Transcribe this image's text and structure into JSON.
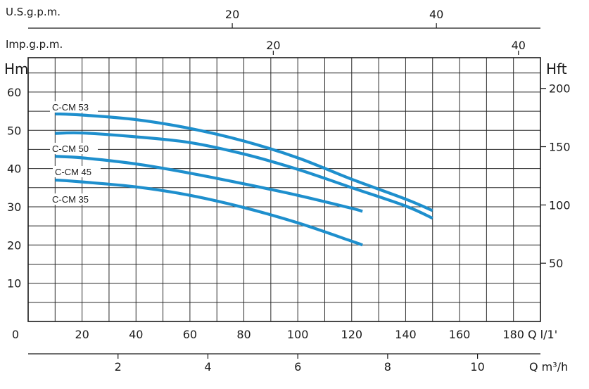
{
  "chart_data": {
    "type": "line",
    "title": "",
    "x": {
      "label": "Q l/1'",
      "ticks": [
        0,
        20,
        40,
        60,
        80,
        100,
        120,
        140,
        160,
        180
      ],
      "range": [
        0,
        190
      ],
      "grid_step": 10
    },
    "y_left": {
      "label": "Hm",
      "ticks": [
        10,
        20,
        30,
        40,
        50,
        60
      ],
      "range": [
        0,
        69
      ],
      "grid_step": 5
    },
    "y_right": {
      "label": "Hft",
      "ticks": [
        50,
        100,
        150,
        200
      ]
    },
    "top_axis_usgpm": {
      "label": "U.S.g.p.m.",
      "ticks": [
        20,
        40
      ]
    },
    "top_axis_impgpm": {
      "label": "Imp.g.p.m.",
      "ticks": [
        20,
        40
      ]
    },
    "bottom_axis_m3h": {
      "label": "Q m³/h",
      "ticks": [
        2,
        4,
        6,
        8,
        10
      ]
    },
    "grid": true,
    "series": [
      {
        "name": "C-CM 53",
        "color": "#1e8fcd",
        "x": [
          10,
          20,
          40,
          60,
          80,
          100,
          120,
          140,
          150
        ],
        "y": [
          54.3,
          54.0,
          52.8,
          50.5,
          47.2,
          42.8,
          37.2,
          32.0,
          29.0
        ]
      },
      {
        "name": "C-CM 50",
        "color": "#1e8fcd",
        "x": [
          10,
          20,
          40,
          60,
          80,
          100,
          120,
          140,
          150
        ],
        "y": [
          49.2,
          49.3,
          48.3,
          46.8,
          43.8,
          39.8,
          35.0,
          30.2,
          27.0
        ]
      },
      {
        "name": "C-CM 45",
        "color": "#1e8fcd",
        "x": [
          10,
          20,
          40,
          60,
          80,
          100,
          120,
          124
        ],
        "y": [
          43.2,
          42.8,
          41.2,
          38.8,
          36.0,
          33.0,
          29.6,
          28.8
        ]
      },
      {
        "name": "C-CM 35",
        "color": "#1e8fcd",
        "x": [
          10,
          20,
          40,
          60,
          80,
          100,
          120,
          124
        ],
        "y": [
          37.0,
          36.5,
          35.2,
          33.0,
          29.8,
          25.8,
          21.0,
          20.0
        ]
      }
    ]
  }
}
